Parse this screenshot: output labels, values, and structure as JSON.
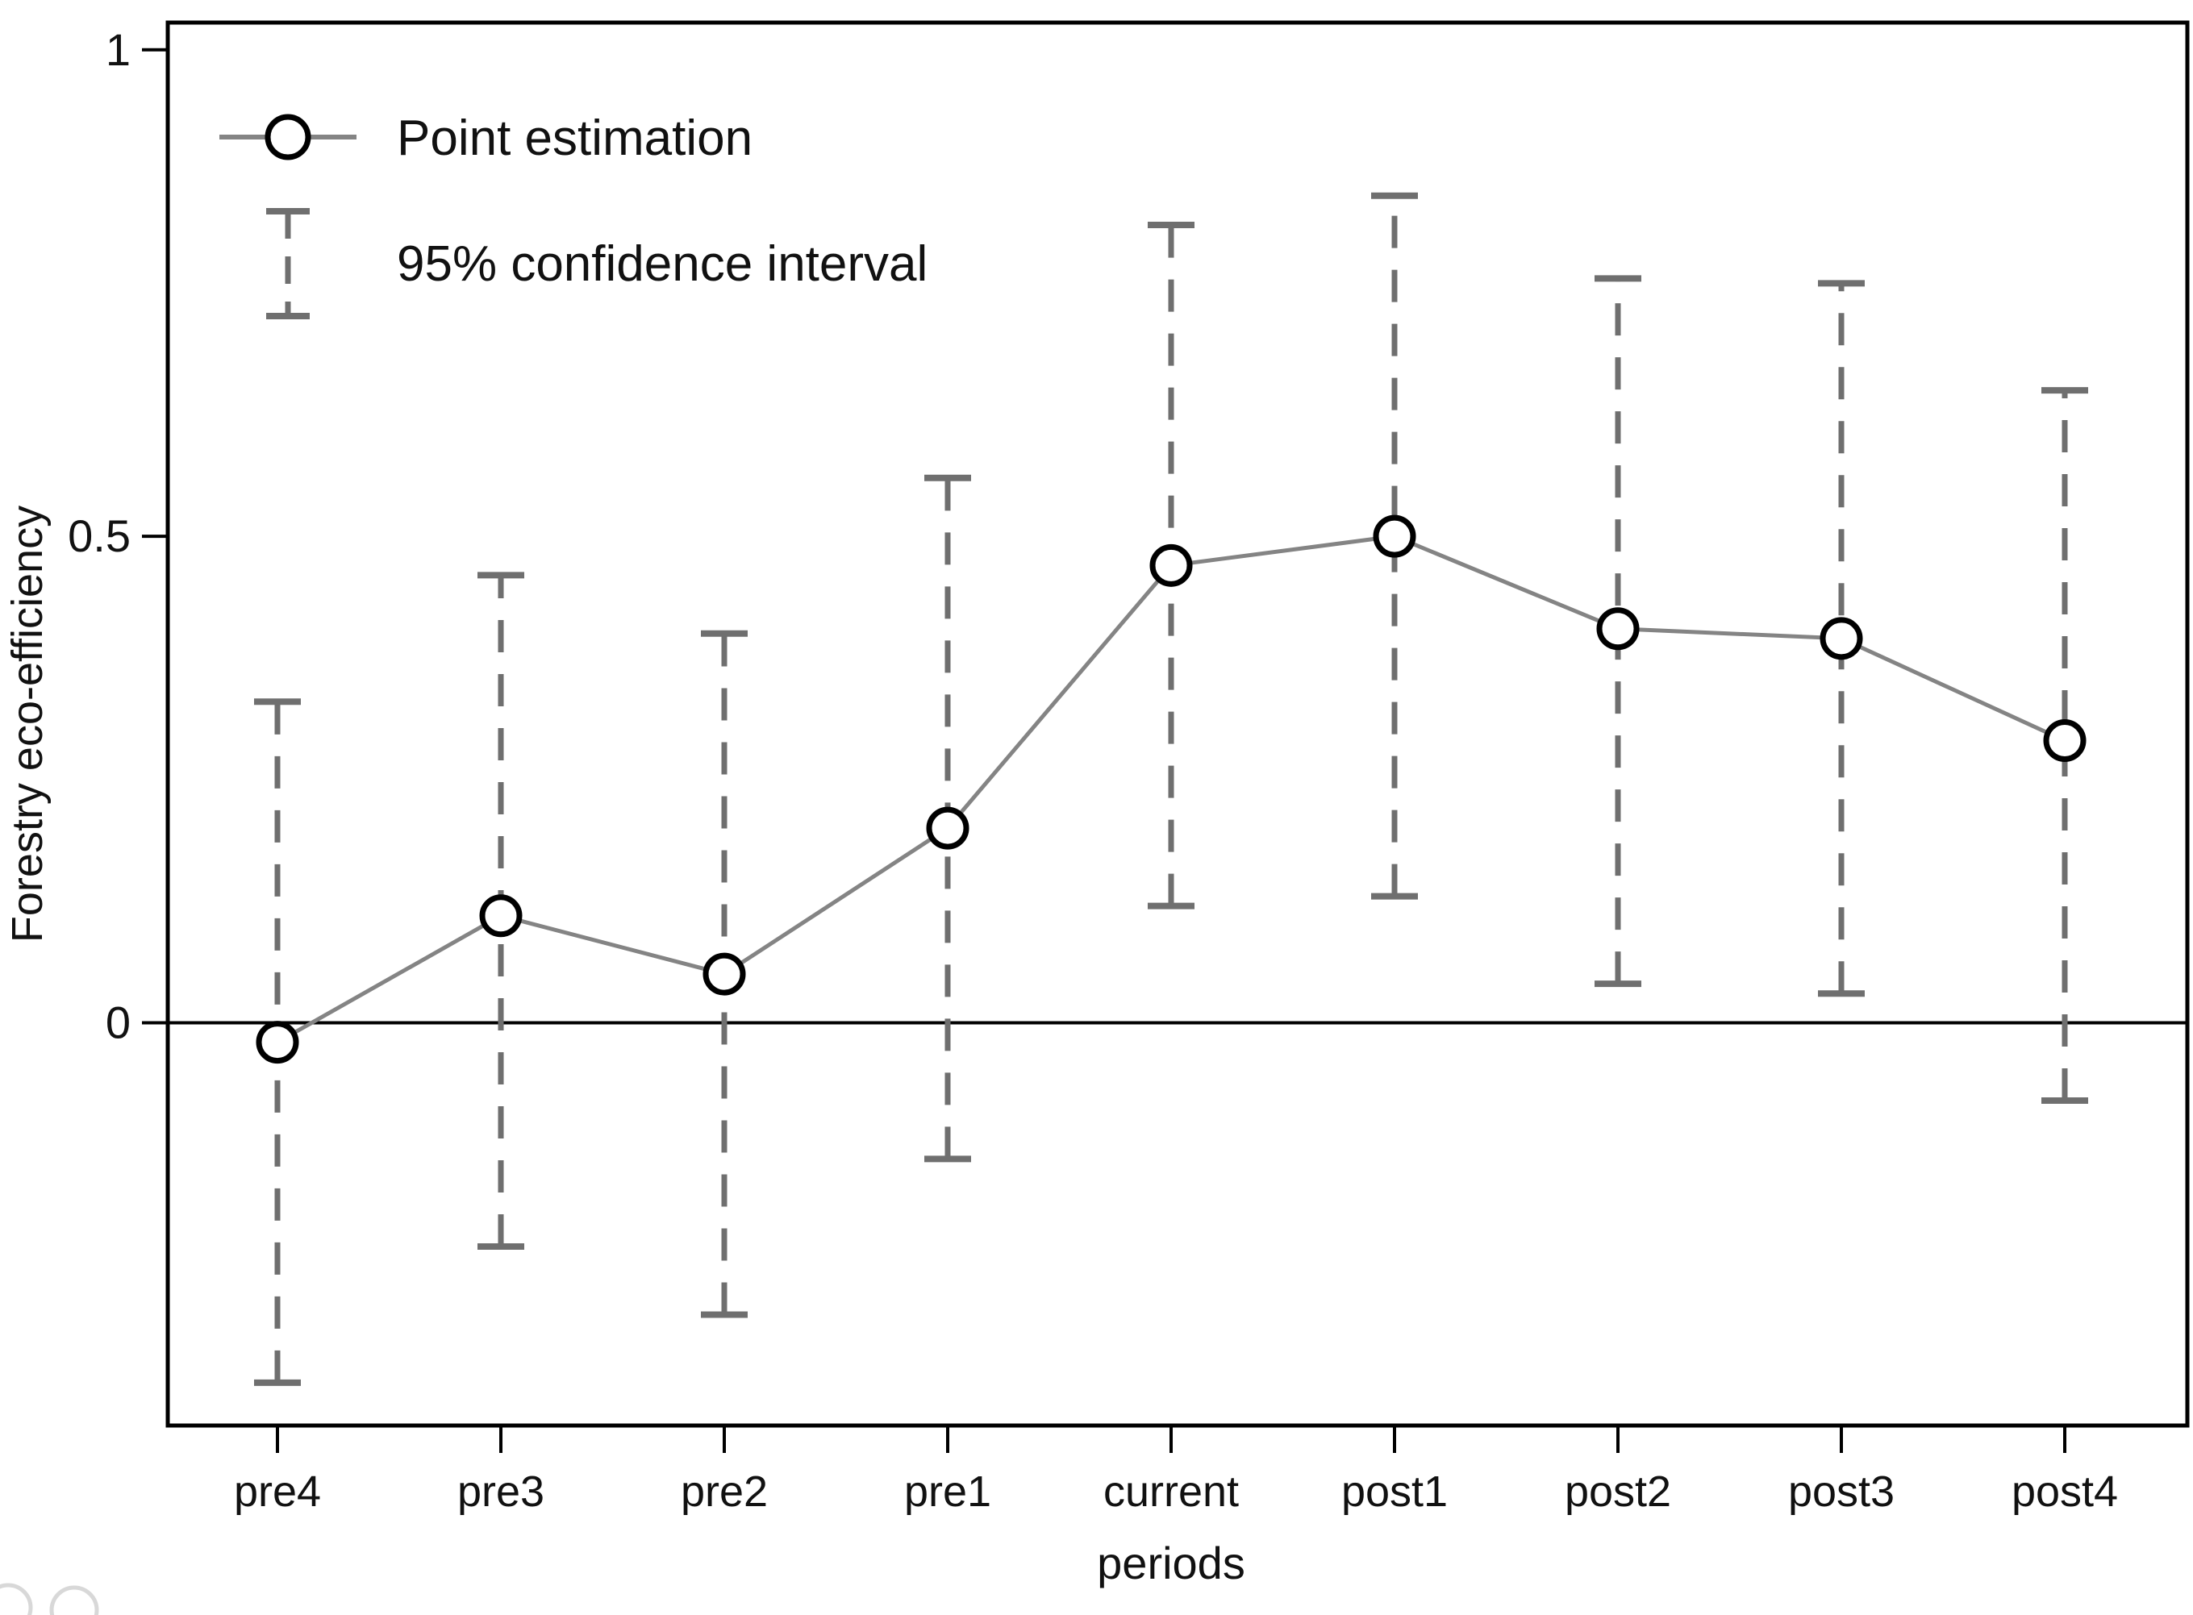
{
  "chart_data": {
    "type": "line",
    "title": "",
    "xlabel": "periods",
    "ylabel": "Forestry eco-efficiency",
    "categories": [
      "pre4",
      "pre3",
      "pre2",
      "pre1",
      "current",
      "post1",
      "post2",
      "post3",
      "post4"
    ],
    "series": [
      {
        "name": "Point estimation",
        "values": [
          -0.02,
          0.11,
          0.05,
          0.2,
          0.47,
          0.5,
          0.405,
          0.395,
          0.29
        ]
      }
    ],
    "ci_lower": [
      -0.37,
      -0.23,
      -0.3,
      -0.14,
      0.12,
      0.13,
      0.04,
      0.03,
      -0.08
    ],
    "ci_upper": [
      0.33,
      0.46,
      0.4,
      0.56,
      0.82,
      0.85,
      0.765,
      0.76,
      0.65
    ],
    "yticks": [
      0,
      0.5,
      1
    ],
    "ytick_labels": [
      "0",
      "0.5",
      "1"
    ],
    "ylim": [
      -0.414,
      1.028
    ],
    "grid": false,
    "zero_line": true,
    "legend": [
      "Point estimation",
      "95% confidence interval"
    ],
    "legend_position": "top-left-inside",
    "colors": {
      "estimate_line": "#848484",
      "marker_stroke": "#000000",
      "marker_fill": "#ffffff",
      "ci": "#6f6f6f",
      "axis": "#000000",
      "text": "#111111",
      "zero_line": "#000000",
      "decoration": "#d8d8d8"
    }
  }
}
